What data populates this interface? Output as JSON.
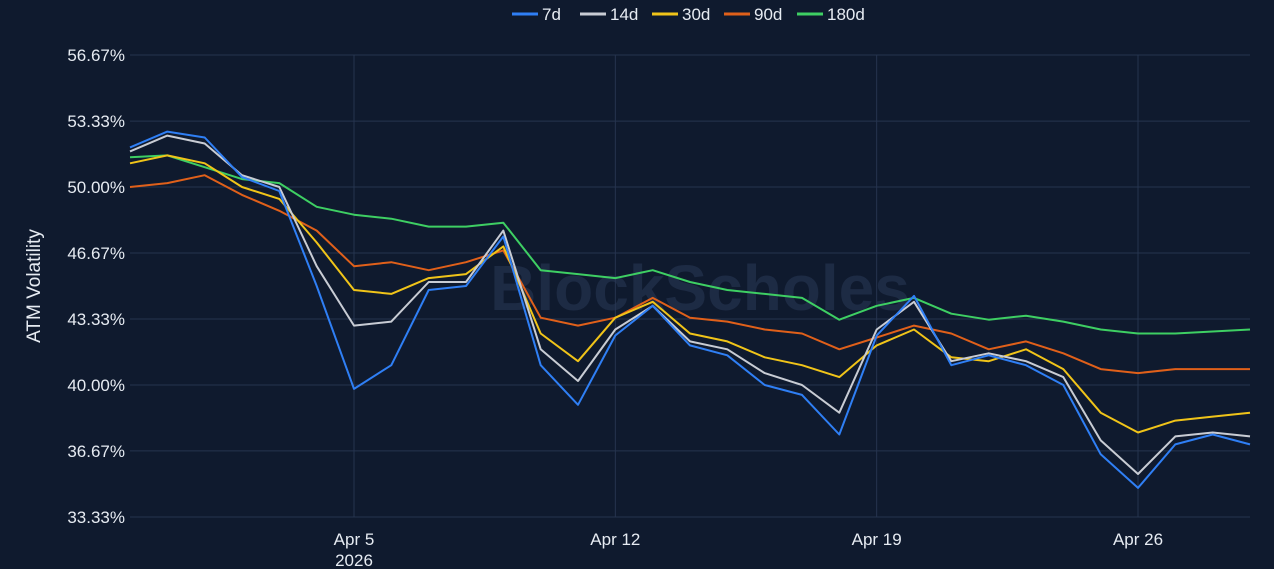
{
  "chart_data": {
    "type": "line",
    "ylabel": "ATM Volatility",
    "xlabel": "",
    "title": "",
    "watermark": "BlockScholes",
    "ylim": [
      33.33,
      56.67
    ],
    "yticks": [
      {
        "value": 56.67,
        "label": "56.67%"
      },
      {
        "value": 53.33,
        "label": "53.33%"
      },
      {
        "value": 50.0,
        "label": "50.00%"
      },
      {
        "value": 46.67,
        "label": "46.67%"
      },
      {
        "value": 43.33,
        "label": "43.33%"
      },
      {
        "value": 40.0,
        "label": "40.00%"
      },
      {
        "value": 36.67,
        "label": "36.67%"
      },
      {
        "value": 33.33,
        "label": "33.33%"
      }
    ],
    "xlim": [
      "2026-03-30",
      "2026-04-29"
    ],
    "xticks": [
      {
        "date": "2026-04-05",
        "label": "Apr 5",
        "sublabel": "2026"
      },
      {
        "date": "2026-04-12",
        "label": "Apr 12",
        "sublabel": ""
      },
      {
        "date": "2026-04-19",
        "label": "Apr 19",
        "sublabel": ""
      },
      {
        "date": "2026-04-26",
        "label": "Apr 26",
        "sublabel": ""
      }
    ],
    "grid": true,
    "legend_position": "top-center",
    "x": [
      "2026-03-30",
      "2026-03-31",
      "2026-04-01",
      "2026-04-02",
      "2026-04-03",
      "2026-04-04",
      "2026-04-05",
      "2026-04-06",
      "2026-04-07",
      "2026-04-08",
      "2026-04-09",
      "2026-04-10",
      "2026-04-11",
      "2026-04-12",
      "2026-04-13",
      "2026-04-14",
      "2026-04-15",
      "2026-04-16",
      "2026-04-17",
      "2026-04-18",
      "2026-04-19",
      "2026-04-20",
      "2026-04-21",
      "2026-04-22",
      "2026-04-23",
      "2026-04-24",
      "2026-04-25",
      "2026-04-26",
      "2026-04-27",
      "2026-04-28",
      "2026-04-29"
    ],
    "series": [
      {
        "name": "7d",
        "color": "#2f7ff5",
        "values": [
          52.0,
          52.8,
          52.5,
          50.5,
          49.8,
          45.0,
          39.8,
          41.0,
          44.8,
          45.0,
          47.5,
          41.0,
          39.0,
          42.5,
          44.0,
          42.0,
          41.5,
          40.0,
          39.5,
          37.5,
          42.5,
          44.5,
          41.0,
          41.5,
          41.0,
          40.0,
          36.5,
          34.8,
          37.0,
          37.5,
          37.0
        ]
      },
      {
        "name": "14d",
        "color": "#c8ccd4",
        "values": [
          51.8,
          52.6,
          52.2,
          50.6,
          50.0,
          46.0,
          43.0,
          43.2,
          45.2,
          45.2,
          47.8,
          41.8,
          40.2,
          42.8,
          44.0,
          42.2,
          41.8,
          40.6,
          40.0,
          38.6,
          42.8,
          44.2,
          41.2,
          41.6,
          41.2,
          40.4,
          37.2,
          35.5,
          37.4,
          37.6,
          37.4
        ]
      },
      {
        "name": "30d",
        "color": "#f0c419",
        "values": [
          51.2,
          51.6,
          51.2,
          50.0,
          49.4,
          47.2,
          44.8,
          44.6,
          45.4,
          45.6,
          47.0,
          42.6,
          41.2,
          43.4,
          44.2,
          42.6,
          42.2,
          41.4,
          41.0,
          40.4,
          42.0,
          42.8,
          41.4,
          41.2,
          41.8,
          40.8,
          38.6,
          37.6,
          38.2,
          38.4,
          38.6
        ]
      },
      {
        "name": "90d",
        "color": "#e0601a",
        "values": [
          50.0,
          50.2,
          50.6,
          49.6,
          48.8,
          47.8,
          46.0,
          46.2,
          45.8,
          46.2,
          46.8,
          43.4,
          43.0,
          43.4,
          44.4,
          43.4,
          43.2,
          42.8,
          42.6,
          41.8,
          42.4,
          43.0,
          42.6,
          41.8,
          42.2,
          41.6,
          40.8,
          40.6,
          40.8,
          40.8,
          40.8
        ]
      },
      {
        "name": "180d",
        "color": "#3ecf63",
        "values": [
          51.5,
          51.6,
          51.0,
          50.4,
          50.2,
          49.0,
          48.6,
          48.4,
          48.0,
          48.0,
          48.2,
          45.8,
          45.6,
          45.4,
          45.8,
          45.2,
          44.8,
          44.6,
          44.4,
          43.3,
          44.0,
          44.4,
          43.6,
          43.3,
          43.5,
          43.2,
          42.8,
          42.6,
          42.6,
          42.7,
          42.8
        ]
      }
    ]
  }
}
